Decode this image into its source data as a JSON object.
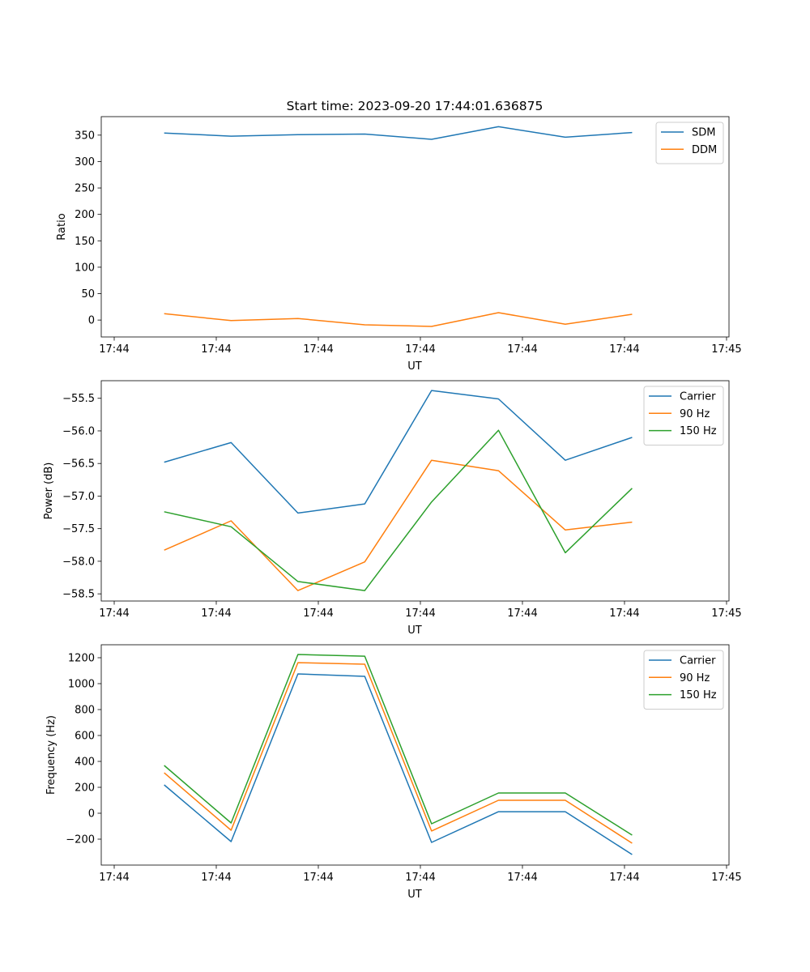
{
  "figure_title": "Start time: 2023-09-20 17:44:01.636875",
  "colors": {
    "c0": "#1f77b4",
    "c1": "#ff7f0e",
    "c2": "#2ca02c"
  },
  "chart_data": [
    {
      "type": "line",
      "title": "Start time: 2023-09-20 17:44:01.636875",
      "xlabel": "UT",
      "ylabel": "Ratio",
      "x": [
        4.9,
        11.45,
        18.0,
        24.55,
        31.1,
        37.65,
        44.2,
        50.75
      ],
      "xlim": [
        -1.27,
        60.24
      ],
      "xticks": [
        0,
        10,
        20,
        30,
        40,
        50,
        60
      ],
      "xtick_labels": [
        "17:44",
        "17:44",
        "17:44",
        "17:44",
        "17:44",
        "17:44",
        "17:45"
      ],
      "ylim": [
        -32,
        385
      ],
      "yticks": [
        0,
        50,
        100,
        150,
        200,
        250,
        300,
        350
      ],
      "ytick_labels": [
        "0",
        "50",
        "100",
        "150",
        "200",
        "250",
        "300",
        "350"
      ],
      "legend": "top-right",
      "series": [
        {
          "name": "SDM",
          "color": "#1f77b4",
          "values": [
            354,
            348,
            351,
            352,
            342,
            366,
            346,
            355
          ]
        },
        {
          "name": "DDM",
          "color": "#ff7f0e",
          "values": [
            12,
            -1,
            3,
            -9,
            -12,
            14,
            -8,
            11
          ]
        }
      ]
    },
    {
      "type": "line",
      "xlabel": "UT",
      "ylabel": "Power (dB)",
      "x": [
        4.9,
        11.45,
        18.0,
        24.55,
        31.1,
        37.65,
        44.2,
        50.75
      ],
      "xlim": [
        -1.27,
        60.24
      ],
      "xticks": [
        0,
        10,
        20,
        30,
        40,
        50,
        60
      ],
      "xtick_labels": [
        "17:44",
        "17:44",
        "17:44",
        "17:44",
        "17:44",
        "17:44",
        "17:45"
      ],
      "ylim": [
        -58.61,
        -55.23
      ],
      "yticks": [
        -58.5,
        -58.0,
        -57.5,
        -57.0,
        -56.5,
        -56.0,
        -55.5
      ],
      "ytick_labels": [
        "−58.5",
        "−58.0",
        "−57.5",
        "−57.0",
        "−56.5",
        "−56.0",
        "−55.5"
      ],
      "legend": "top-right",
      "series": [
        {
          "name": "Carrier",
          "color": "#1f77b4",
          "values": [
            -56.48,
            -56.18,
            -57.26,
            -57.12,
            -55.38,
            -55.51,
            -56.45,
            -56.1
          ]
        },
        {
          "name": "90 Hz",
          "color": "#ff7f0e",
          "values": [
            -57.83,
            -57.38,
            -58.45,
            -58.01,
            -56.45,
            -56.61,
            -57.52,
            -57.4
          ]
        },
        {
          "name": "150 Hz",
          "color": "#2ca02c",
          "values": [
            -57.24,
            -57.47,
            -58.31,
            -58.45,
            -57.09,
            -55.99,
            -57.87,
            -56.88
          ]
        }
      ]
    },
    {
      "type": "line",
      "xlabel": "UT",
      "ylabel": "Frequency (Hz)",
      "x": [
        4.9,
        11.45,
        18.0,
        24.55,
        31.1,
        37.65,
        44.2,
        50.75
      ],
      "xlim": [
        -1.27,
        60.24
      ],
      "xticks": [
        0,
        10,
        20,
        30,
        40,
        50,
        60
      ],
      "xtick_labels": [
        "17:44",
        "17:44",
        "17:44",
        "17:44",
        "17:44",
        "17:44",
        "17:45"
      ],
      "ylim": [
        -400,
        1300
      ],
      "yticks": [
        -200,
        0,
        200,
        400,
        600,
        800,
        1000,
        1200
      ],
      "ytick_labels": [
        "−200",
        "0",
        "200",
        "400",
        "600",
        "800",
        "1000",
        "1200"
      ],
      "legend": "top-right",
      "series": [
        {
          "name": "Carrier",
          "color": "#1f77b4",
          "values": [
            219,
            -219,
            1075,
            1056,
            -225,
            12,
            12,
            -319
          ]
        },
        {
          "name": "90 Hz",
          "color": "#ff7f0e",
          "values": [
            312,
            -131,
            1162,
            1150,
            -137,
            100,
            100,
            -231
          ]
        },
        {
          "name": "150 Hz",
          "color": "#2ca02c",
          "values": [
            369,
            -75,
            1225,
            1212,
            -81,
            156,
            156,
            -169
          ]
        }
      ]
    }
  ]
}
